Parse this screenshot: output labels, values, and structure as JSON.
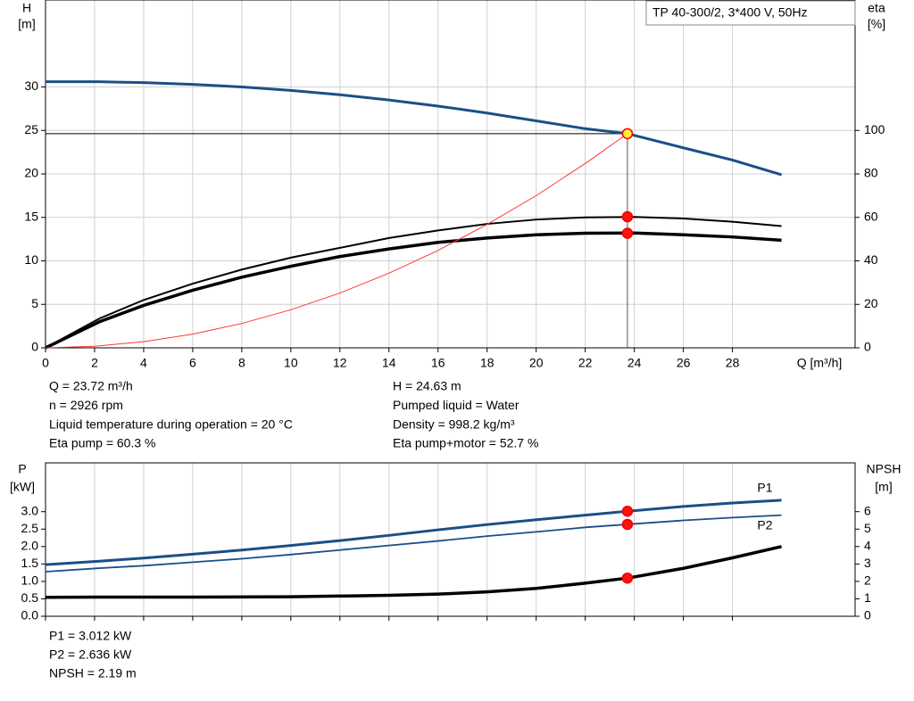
{
  "chart_data": [
    {
      "type": "line",
      "annotation": "TP 40-300/2, 3*400 V, 50Hz",
      "y_label": "H",
      "y_unit": "[m]",
      "y2_label": "eta",
      "y2_unit": "[%]",
      "x_label": "Q [m³/h]",
      "xlim": [
        0,
        33
      ],
      "xticks": [
        0,
        2,
        4,
        6,
        8,
        10,
        12,
        14,
        16,
        18,
        20,
        22,
        24,
        26,
        28
      ],
      "ylim": [
        0,
        40
      ],
      "yticks": [
        0,
        5,
        10,
        15,
        20,
        25,
        30
      ],
      "y2lim": [
        0,
        160
      ],
      "y2ticks": [
        0,
        20,
        40,
        60,
        80,
        100
      ],
      "grid": true,
      "op_x": 23.72,
      "series": [
        {
          "color": "#1a4f86",
          "width": 3,
          "op": 24.63,
          "op_color": "#ffee33",
          "x": [
            0,
            2.2,
            4,
            6,
            8,
            10,
            12,
            14,
            16,
            18,
            20,
            22,
            23.72,
            26,
            28,
            30
          ],
          "values": [
            30.6,
            30.6,
            30.5,
            30.3,
            30.0,
            29.6,
            29.1,
            28.5,
            27.8,
            27.0,
            26.1,
            25.2,
            24.63,
            23.0,
            21.6,
            19.9
          ]
        },
        {
          "color": "#000000",
          "width": 2,
          "axis": "y2",
          "op": 60.3,
          "op_color": "#ff1111",
          "x": [
            0,
            2.2,
            4,
            6,
            8,
            10,
            12,
            14,
            16,
            18,
            20,
            22,
            24,
            26,
            28,
            30
          ],
          "values": [
            0,
            13.5,
            22,
            29.5,
            36,
            41.5,
            46,
            50.5,
            54,
            57,
            59,
            60,
            60.2,
            59.5,
            58,
            56
          ]
        },
        {
          "color": "#000000",
          "width": 3.5,
          "axis": "y2",
          "op": 52.7,
          "op_color": "#ff1111",
          "x": [
            0,
            2.2,
            4,
            6,
            8,
            10,
            12,
            14,
            16,
            18,
            20,
            22,
            24,
            26,
            28,
            30
          ],
          "values": [
            0,
            12,
            19.5,
            26.5,
            32.5,
            37.5,
            42,
            45.5,
            48.5,
            50.5,
            52,
            52.7,
            52.8,
            52,
            51,
            49.5
          ]
        },
        {
          "color": "#ff3333",
          "width": 1,
          "x": [
            0,
            2,
            4,
            6,
            8,
            10,
            12,
            14,
            16,
            18,
            20,
            22,
            23.72
          ],
          "values": [
            0,
            0.18,
            0.7,
            1.58,
            2.8,
            4.38,
            6.3,
            8.58,
            11.2,
            14.2,
            17.5,
            21.2,
            24.63
          ]
        }
      ]
    },
    {
      "type": "line",
      "y_label": "P",
      "y_unit": "[kW]",
      "y2_label": "NPSH",
      "y2_unit": "[m]",
      "xlim": [
        0,
        33
      ],
      "ylim": [
        0,
        4.4
      ],
      "yticks": [
        {
          "value": 0,
          "label": "0.0"
        },
        0.5,
        {
          "value": 1,
          "label": "1.0"
        },
        1.5,
        {
          "value": 2,
          "label": "2.0"
        },
        2.5,
        {
          "value": 3,
          "label": "3.0"
        }
      ],
      "y2lim": [
        0,
        8.8
      ],
      "y2ticks": [
        0,
        1,
        2,
        3,
        4,
        5,
        6
      ],
      "op_x": 23.72,
      "series": [
        {
          "name": "P1",
          "color": "#1a4f86",
          "width": 3,
          "op": 3.012,
          "op_color": "#ff1111",
          "x": [
            0,
            2.2,
            4,
            6,
            8,
            10,
            12,
            14,
            16,
            18,
            20,
            22,
            23.72,
            26,
            28,
            30
          ],
          "values": [
            1.48,
            1.58,
            1.67,
            1.78,
            1.9,
            2.03,
            2.17,
            2.32,
            2.48,
            2.63,
            2.77,
            2.9,
            3.012,
            3.15,
            3.25,
            3.33
          ]
        },
        {
          "name": "P2",
          "color": "#1a4f86",
          "width": 1.8,
          "op": 2.636,
          "op_color": "#ff1111",
          "x": [
            0,
            2.2,
            4,
            6,
            8,
            10,
            12,
            14,
            16,
            18,
            20,
            22,
            23.72,
            26,
            28,
            30
          ],
          "values": [
            1.28,
            1.38,
            1.45,
            1.55,
            1.65,
            1.77,
            1.9,
            2.03,
            2.16,
            2.3,
            2.42,
            2.55,
            2.636,
            2.75,
            2.83,
            2.9
          ]
        },
        {
          "color": "#000000",
          "width": 3.5,
          "axis": "y2",
          "op": 2.19,
          "op_color": "#ff1111",
          "x": [
            0,
            2.2,
            6,
            10,
            14,
            16,
            18,
            20,
            22,
            23.72,
            26,
            28,
            30
          ],
          "values": [
            1.09,
            1.1,
            1.1,
            1.12,
            1.2,
            1.27,
            1.4,
            1.6,
            1.9,
            2.19,
            2.75,
            3.35,
            4.0
          ]
        }
      ]
    }
  ],
  "info": {
    "left": [
      "Q = 23.72 m³/h",
      "n = 2926 rpm",
      "Liquid temperature during operation = 20 °C",
      "Eta pump = 60.3 %"
    ],
    "right": [
      "H = 24.63 m",
      "Pumped liquid = Water",
      "Density = 998.2 kg/m³",
      "Eta pump+motor = 52.7 %"
    ],
    "bottom": [
      "P1 = 3.012 kW",
      "P2 = 2.636 kW",
      "NPSH = 2.19 m"
    ]
  }
}
